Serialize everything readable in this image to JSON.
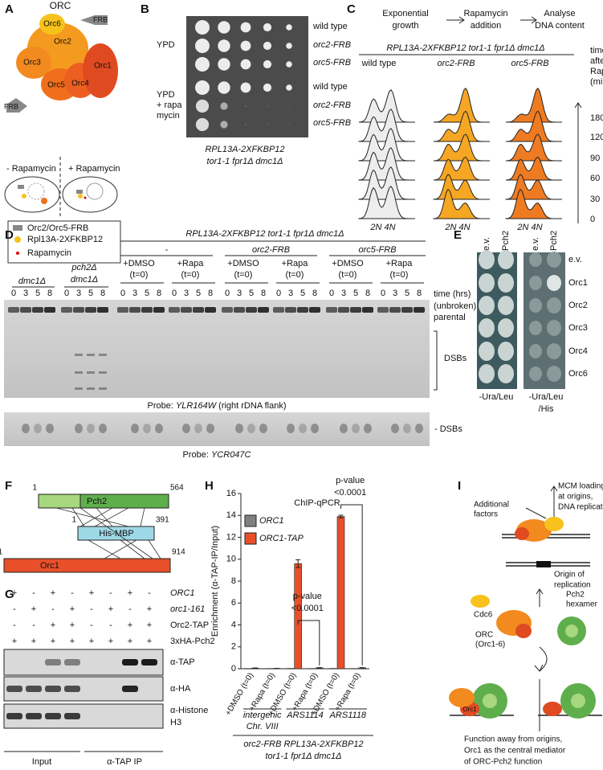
{
  "panel_a": {
    "label": "A",
    "title": "ORC",
    "subunits": [
      "Orc6",
      "Orc2",
      "Orc3",
      "Orc1",
      "Orc5",
      "Orc4"
    ],
    "tag": "FRB",
    "conditions": [
      "- Rapamycin",
      "+ Rapamycin"
    ],
    "legend": [
      "Orc2/Orc5-FRB",
      "Rpl13A-2XFKBP12",
      "Rapamycin"
    ]
  },
  "panel_b": {
    "label": "B",
    "media": [
      [
        "YPD"
      ],
      [
        "YPD",
        "+ rapa",
        "mycin"
      ]
    ],
    "strains": [
      "wild type",
      "orc2-FRB",
      "orc5-FRB"
    ],
    "genotype": [
      "RPL13A-2XFKBP12",
      "tor1-1 fpr1Δ dmc1Δ"
    ]
  },
  "panel_c": {
    "label": "C",
    "steps": [
      [
        "Exponential",
        "growth"
      ],
      [
        "Rapamycin",
        "addition"
      ],
      [
        "Analyse",
        "DNA content"
      ]
    ],
    "genotype": "RPL13A-2XFKBP12 tor1-1 fpr1Δ dmc1Δ",
    "columns": [
      "wild type",
      "orc2-FRB",
      "orc5-FRB"
    ],
    "time_header": [
      "time",
      "after",
      "Rapa",
      "(min)"
    ],
    "times": [
      180,
      120,
      90,
      60,
      30,
      0
    ],
    "ploidy": "2N 4N"
  },
  "panel_d": {
    "label": "D",
    "genotype": "RPL13A-2XFKBP12 tor1-1 fpr1Δ dmc1Δ",
    "strains": [
      "-",
      "orc2-FRB",
      "orc5-FRB"
    ],
    "controls": [
      [
        "dmc1Δ"
      ],
      [
        "pch2Δ",
        "dmc1Δ"
      ]
    ],
    "treatments": [
      [
        "+DMSO",
        "(t=0)"
      ],
      [
        "+Rapa",
        "(t=0)"
      ]
    ],
    "times": [
      0,
      3,
      5,
      8
    ],
    "time_label": "time (hrs)",
    "parental": [
      "(unbroken)",
      "parental"
    ],
    "dsbs": "DSBs",
    "dsbs_marker": "- DSBs",
    "probe1": [
      "Probe: ",
      "YLR164W",
      " (right rDNA flank)"
    ],
    "probe2": [
      "Probe: ",
      "YCR047C"
    ]
  },
  "panel_e": {
    "label": "E",
    "columns": [
      "e.v.",
      "Pch2",
      "e.v.",
      "Pch2"
    ],
    "rows": [
      "e.v.",
      "Orc1",
      "Orc2",
      "Orc3",
      "Orc4",
      "Orc6"
    ],
    "media": [
      [
        "-Ura/Leu"
      ],
      [
        "-Ura/Leu",
        "/His"
      ]
    ]
  },
  "panel_f": {
    "label": "F",
    "proteins": [
      {
        "name": "Pch2",
        "start": 1,
        "end": 564
      },
      {
        "name": "His-MBP",
        "start": 1,
        "end": 391
      },
      {
        "name": "Orc1",
        "start": 1,
        "end": 914
      }
    ]
  },
  "panel_g": {
    "label": "G",
    "rows": [
      {
        "label": "ORC1",
        "marks": [
          "+",
          "-",
          "+",
          "-",
          "+",
          "-",
          "+",
          "-"
        ]
      },
      {
        "label": "orc1-161",
        "marks": [
          "-",
          "+",
          "-",
          "+",
          "-",
          "+",
          "-",
          "+"
        ]
      },
      {
        "label": "Orc2-TAP",
        "marks": [
          "-",
          "-",
          "+",
          "+",
          "-",
          "-",
          "+",
          "+"
        ]
      },
      {
        "label": "3xHA-Pch2",
        "marks": [
          "+",
          "+",
          "+",
          "+",
          "+",
          "+",
          "+",
          "+"
        ]
      }
    ],
    "blots": [
      [
        "α-TAP"
      ],
      [
        "α-HA"
      ],
      [
        "α-Histone",
        "H3"
      ]
    ],
    "fractions": [
      "Input",
      "α-TAP IP"
    ]
  },
  "chart_data": {
    "type": "bar",
    "label": "H",
    "title": "ChIP-qPCR",
    "y_label": "Enrichment (α-TAP-IP/Input)",
    "categories": [
      "+DMSO (t=0)",
      "+Rapa (t=0)",
      "+DMSO (t=0)",
      "+Rapa (t=0)",
      "+DMSO (t=0)",
      "+Rapa (t=0)"
    ],
    "groups": [
      [
        "intergenic",
        "Chr. VIII"
      ],
      [
        "ARS1114"
      ],
      [
        "ARS1118"
      ]
    ],
    "genotype": [
      "orc2-FRB RPL13A-2XFKBP12",
      "tor1-1 fpr1Δ dmc1Δ"
    ],
    "annotations": [
      [
        "p-value",
        "<0.0001"
      ],
      [
        "p-value",
        "<0.0001"
      ]
    ],
    "series": [
      {
        "name": "ORC1",
        "color": "#808080",
        "values": [
          0.02,
          0.02,
          0.03,
          0.02,
          0.03,
          0.02
        ]
      },
      {
        "name": "ORC1-TAP",
        "color": "#e8502a",
        "values": [
          0.05,
          0.03,
          9.6,
          0.08,
          13.9,
          0.08
        ],
        "errors": [
          0.02,
          0.01,
          0.35,
          0.02,
          0.12,
          0.02
        ]
      }
    ],
    "ylim": [
      0,
      16
    ],
    "yticks": [
      0,
      2,
      4,
      6,
      8,
      10,
      12,
      14,
      16
    ]
  },
  "panel_i": {
    "label": "I",
    "factors": [
      "Additional",
      "factors"
    ],
    "outcome": [
      "MCM loading",
      "at origins,",
      "DNA replication"
    ],
    "origin": [
      "Origin of",
      "replication"
    ],
    "cdc6": "Cdc6",
    "pch2": [
      "Pch2",
      "hexamer"
    ],
    "orc": [
      "ORC",
      "(Orc1-6)"
    ],
    "orc1": "Orc1",
    "summary": [
      "Function away from origins,",
      "Orc1 as the central mediator",
      "of ORC-Pch2 function"
    ]
  }
}
